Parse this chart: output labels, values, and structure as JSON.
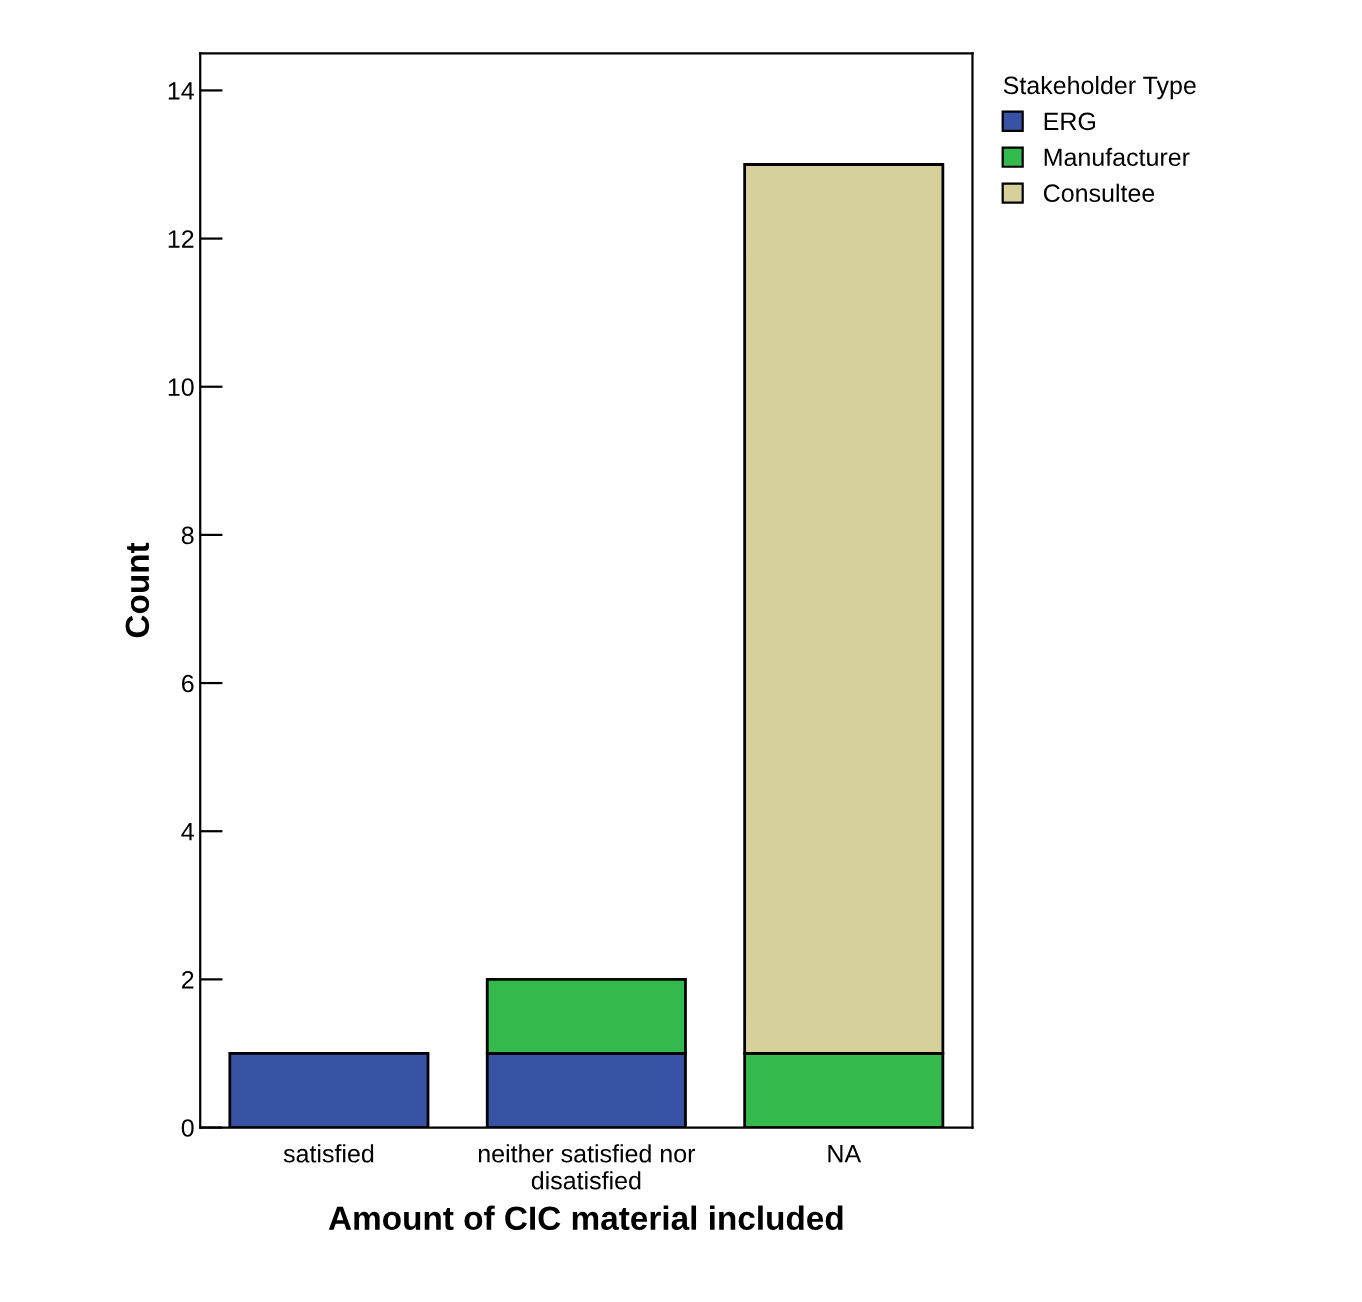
{
  "chart_data": {
    "type": "bar",
    "stacked": true,
    "xlabel": "Amount of CIC material included",
    "ylabel": "Count",
    "legend_title": "Stakeholder Type",
    "categories": [
      "satisfied",
      "neither satisfied nor disatisfied",
      "NA"
    ],
    "series": [
      {
        "name": "ERG",
        "color": "#3953a4",
        "values": [
          1,
          1,
          0
        ]
      },
      {
        "name": "Manufacturer",
        "color": "#33b94c",
        "values": [
          0,
          1,
          1
        ]
      },
      {
        "name": "Consultee",
        "color": "#d6d19a",
        "values": [
          0,
          0,
          12
        ]
      }
    ],
    "ylim": [
      0,
      14.5
    ],
    "yticks": [
      0,
      2,
      4,
      6,
      8,
      10,
      12,
      14
    ],
    "grid": false,
    "legend": "top right"
  }
}
